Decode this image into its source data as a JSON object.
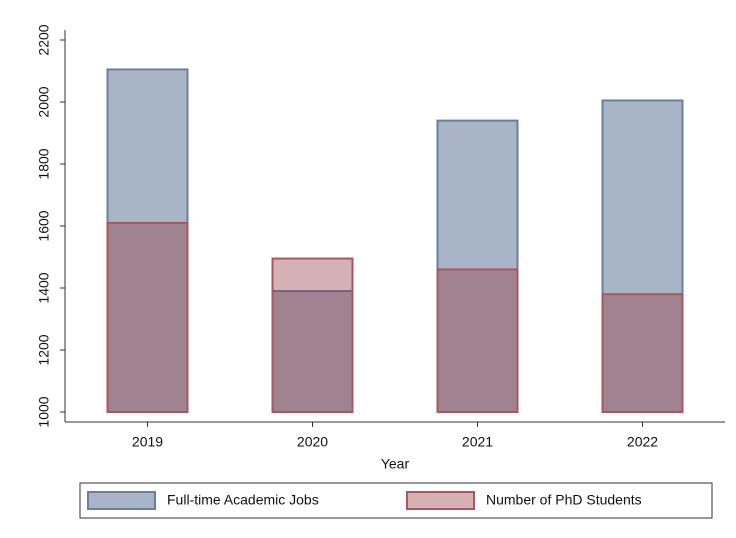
{
  "chart_data": {
    "type": "overlaid_bar",
    "x_label": "Year",
    "categories": [
      "2019",
      "2020",
      "2021",
      "2022"
    ],
    "series": [
      {
        "name": "Full-time Academic Jobs",
        "color": "#a8b5c7",
        "stroke": "#6a7fa0",
        "opacity": 1,
        "values": [
          2105,
          1390,
          1940,
          2005
        ]
      },
      {
        "name": "Number of PhD Students",
        "color": "#91323a",
        "stroke": "#a9575e",
        "opacity": 0.38,
        "values": [
          1610,
          1495,
          1460,
          1380
        ]
      }
    ],
    "ylim": [
      1000,
      2200
    ],
    "yticks": [
      1000,
      1200,
      1400,
      1600,
      1800,
      2000,
      2200
    ],
    "legend": "bottom"
  }
}
